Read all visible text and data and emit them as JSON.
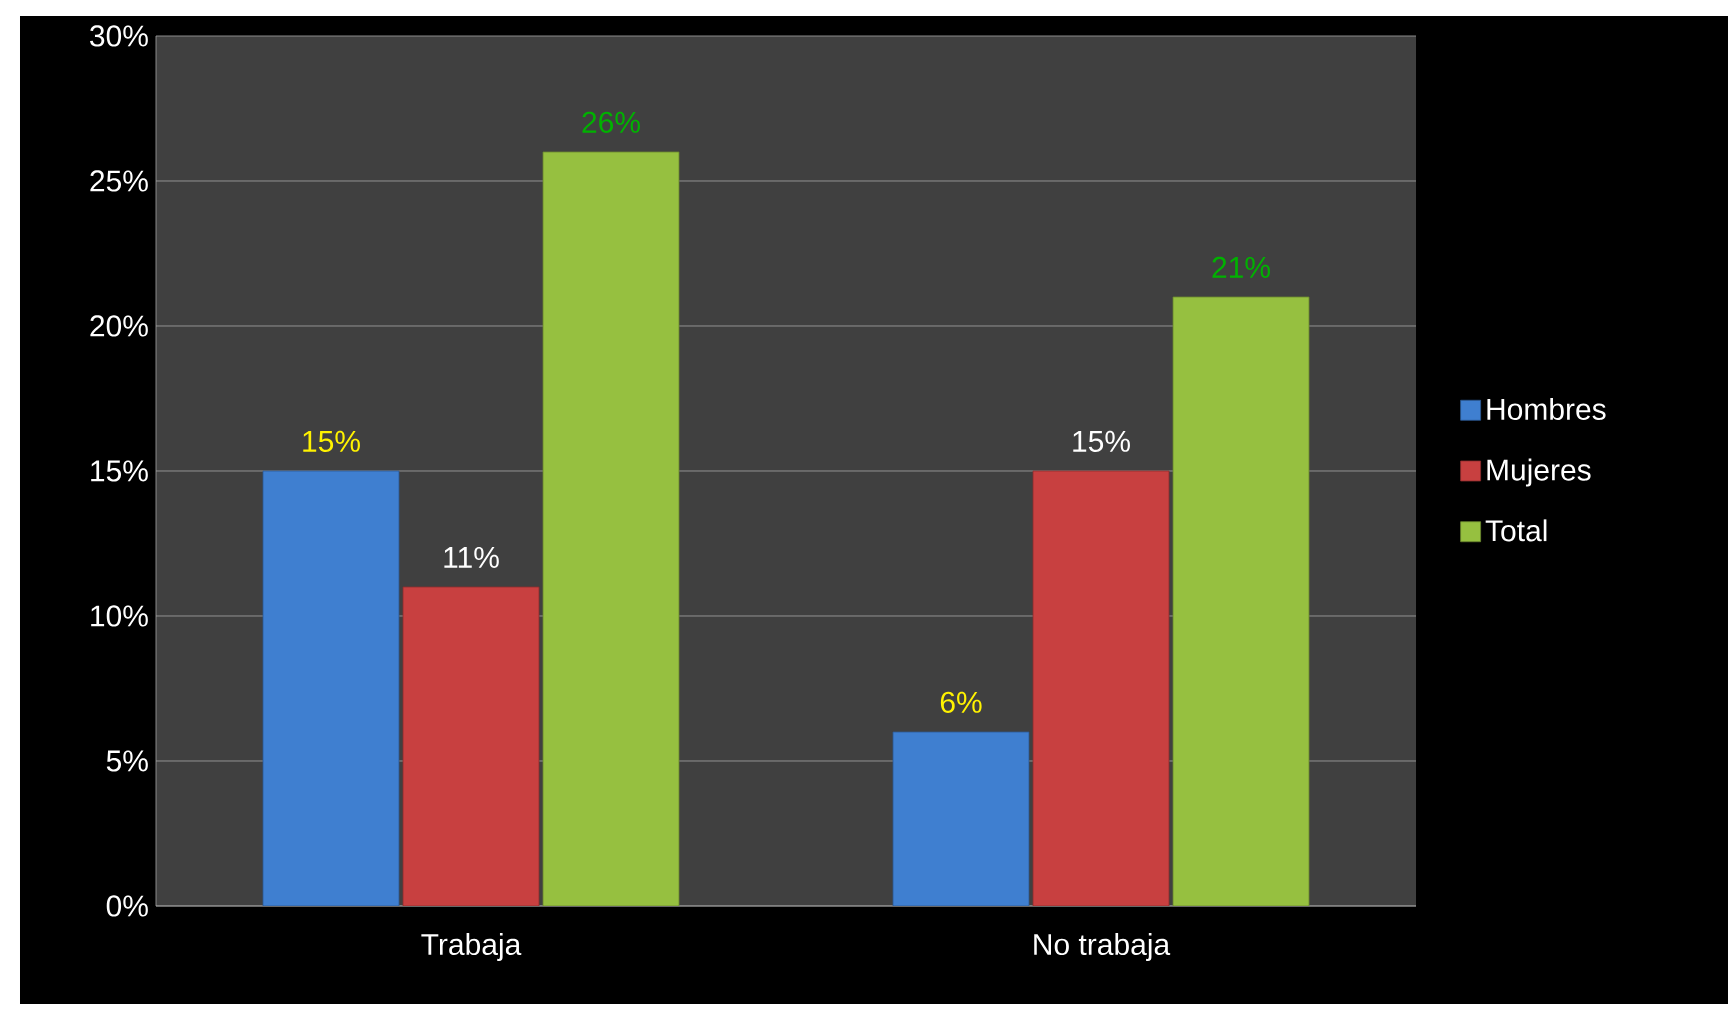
{
  "chart_data": {
    "type": "bar",
    "categories": [
      "Trabaja",
      "No trabaja"
    ],
    "series": [
      {
        "name": "Hombres",
        "color": "#3f7fd0",
        "values": [
          15,
          6
        ],
        "value_labels": [
          "15%",
          "6%"
        ]
      },
      {
        "name": "Mujeres",
        "color": "#c84040",
        "values": [
          11,
          15
        ],
        "value_labels": [
          "11%",
          "15%"
        ]
      },
      {
        "name": "Total",
        "color": "#96c040",
        "values": [
          26,
          21
        ],
        "value_labels": [
          "26%",
          "21%"
        ]
      }
    ],
    "ylim": [
      0,
      30
    ],
    "yticks": [
      {
        "value": 0,
        "label": "0%"
      },
      {
        "value": 5,
        "label": "5%"
      },
      {
        "value": 10,
        "label": "10%"
      },
      {
        "value": 15,
        "label": "15%"
      },
      {
        "value": 20,
        "label": "20%"
      },
      {
        "value": 25,
        "label": "25%"
      },
      {
        "value": 30,
        "label": "30%"
      }
    ],
    "grid": "y",
    "legend": "right"
  }
}
